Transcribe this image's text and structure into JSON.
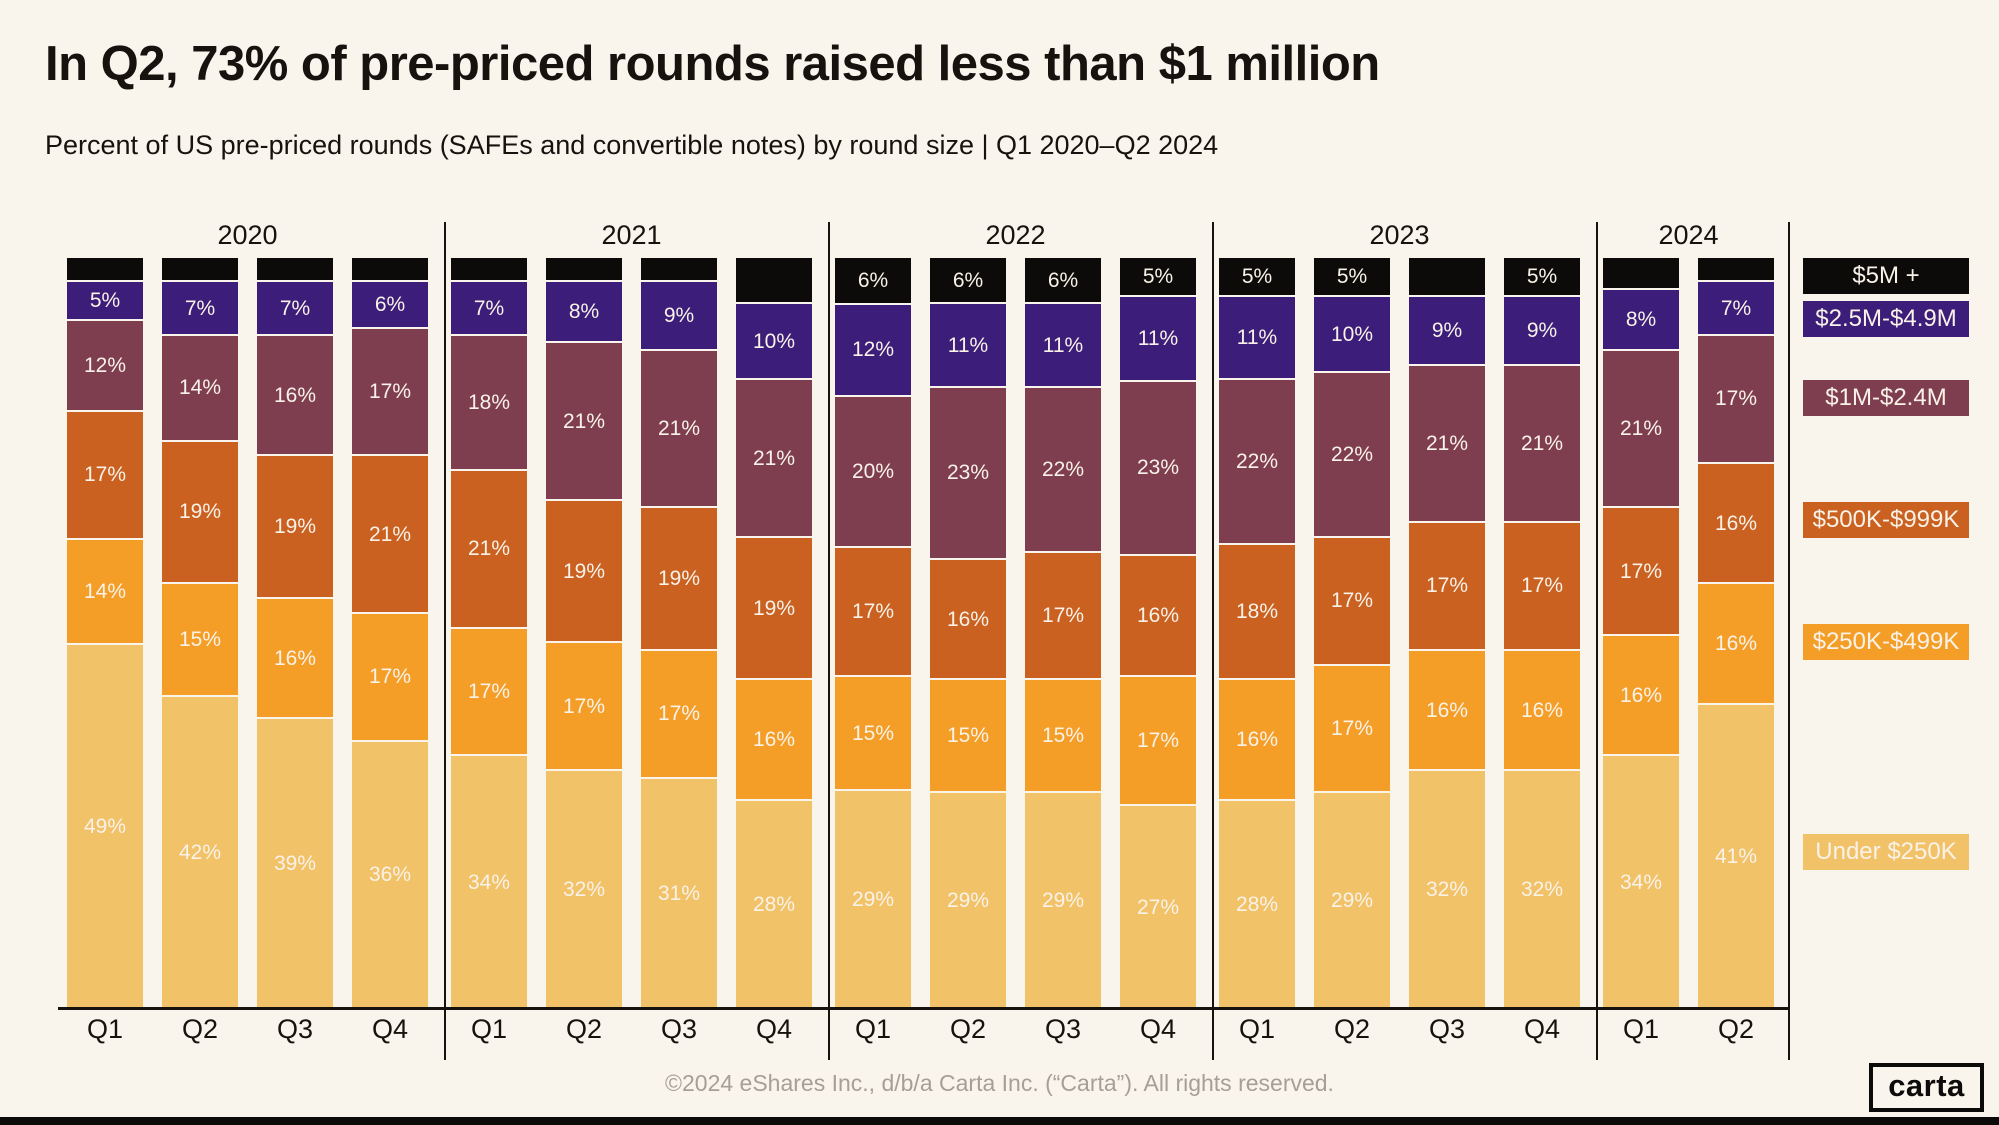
{
  "header": {
    "title": "In Q2, 73% of pre-priced rounds raised less than $1 million",
    "subtitle": "Percent of US pre-priced rounds (SAFEs and convertible notes) by round size | Q1 2020–Q2 2024"
  },
  "footer": {
    "copyright": "©2024 eShares Inc., d/b/a Carta Inc. (“Carta”). All rights reserved.",
    "logo_text": "carta"
  },
  "colors": {
    "background": "#f9f4ec",
    "m5_plus": "#0d0b0a",
    "m2_5_4_9": "#3c1d79",
    "m1_2_4": "#7f3e4f",
    "k500_999": "#ca6120",
    "k250_499": "#f59e27",
    "under_250k": "#f2c269",
    "bar_label": "#f8f2e8",
    "footer_text": "#a69f95",
    "text": "#16130f"
  },
  "legend": [
    {
      "key": "m5_plus",
      "label": "$5M +"
    },
    {
      "key": "m2_5_4_9",
      "label": "$2.5M-$4.9M"
    },
    {
      "key": "m1_2_4",
      "label": "$1M-$2.4M"
    },
    {
      "key": "k500_999",
      "label": "$500K-$999K"
    },
    {
      "key": "k250_499",
      "label": "$250K-$499K"
    },
    {
      "key": "under_250k",
      "label": "Under $250K"
    }
  ],
  "chart_data": {
    "type": "bar",
    "stacked": true,
    "value_unit": "%",
    "title": "In Q2, 73% of pre-priced rounds raised less than $1 million",
    "subtitle": "Percent of US pre-priced rounds (SAFEs and convertible notes) by round size | Q1 2020–Q2 2024",
    "stack_order_bottom_to_top": [
      "under_250k",
      "k250_499",
      "k500_999",
      "m1_2_4",
      "m2_5_4_9",
      "m5_plus"
    ],
    "legend_position": "right",
    "ylim": [
      0,
      100
    ],
    "grid": false,
    "groups": [
      {
        "year": "2020",
        "quarters": [
          {
            "label": "Q1",
            "values": {
              "under_250k": 49,
              "k250_499": 14,
              "k500_999": 17,
              "m1_2_4": 12,
              "m2_5_4_9": 5,
              "m5_plus": 3
            },
            "m5_label": false
          },
          {
            "label": "Q2",
            "values": {
              "under_250k": 42,
              "k250_499": 15,
              "k500_999": 19,
              "m1_2_4": 14,
              "m2_5_4_9": 7,
              "m5_plus": 3
            },
            "m5_label": false
          },
          {
            "label": "Q3",
            "values": {
              "under_250k": 39,
              "k250_499": 16,
              "k500_999": 19,
              "m1_2_4": 16,
              "m2_5_4_9": 7,
              "m5_plus": 3
            },
            "m5_label": false
          },
          {
            "label": "Q4",
            "values": {
              "under_250k": 36,
              "k250_499": 17,
              "k500_999": 21,
              "m1_2_4": 17,
              "m2_5_4_9": 6,
              "m5_plus": 3
            },
            "m5_label": false
          }
        ]
      },
      {
        "year": "2021",
        "quarters": [
          {
            "label": "Q1",
            "values": {
              "under_250k": 34,
              "k250_499": 17,
              "k500_999": 21,
              "m1_2_4": 18,
              "m2_5_4_9": 7,
              "m5_plus": 3
            },
            "m5_label": false
          },
          {
            "label": "Q2",
            "values": {
              "under_250k": 32,
              "k250_499": 17,
              "k500_999": 19,
              "m1_2_4": 21,
              "m2_5_4_9": 8,
              "m5_plus": 3
            },
            "m5_label": false
          },
          {
            "label": "Q3",
            "values": {
              "under_250k": 31,
              "k250_499": 17,
              "k500_999": 19,
              "m1_2_4": 21,
              "m2_5_4_9": 9,
              "m5_plus": 3
            },
            "m5_label": false
          },
          {
            "label": "Q4",
            "values": {
              "under_250k": 28,
              "k250_499": 16,
              "k500_999": 19,
              "m1_2_4": 21,
              "m2_5_4_9": 10,
              "m5_plus": 6
            },
            "m5_label": false
          }
        ]
      },
      {
        "year": "2022",
        "quarters": [
          {
            "label": "Q1",
            "values": {
              "under_250k": 29,
              "k250_499": 15,
              "k500_999": 17,
              "m1_2_4": 20,
              "m2_5_4_9": 12,
              "m5_plus": 6
            },
            "m5_label": true
          },
          {
            "label": "Q2",
            "values": {
              "under_250k": 29,
              "k250_499": 15,
              "k500_999": 16,
              "m1_2_4": 23,
              "m2_5_4_9": 11,
              "m5_plus": 6
            },
            "m5_label": true
          },
          {
            "label": "Q3",
            "values": {
              "under_250k": 29,
              "k250_499": 15,
              "k500_999": 17,
              "m1_2_4": 22,
              "m2_5_4_9": 11,
              "m5_plus": 6
            },
            "m5_label": true
          },
          {
            "label": "Q4",
            "values": {
              "under_250k": 27,
              "k250_499": 17,
              "k500_999": 16,
              "m1_2_4": 23,
              "m2_5_4_9": 11,
              "m5_plus": 5
            },
            "m5_label": true
          }
        ]
      },
      {
        "year": "2023",
        "quarters": [
          {
            "label": "Q1",
            "values": {
              "under_250k": 28,
              "k250_499": 16,
              "k500_999": 18,
              "m1_2_4": 22,
              "m2_5_4_9": 11,
              "m5_plus": 5
            },
            "m5_label": true
          },
          {
            "label": "Q2",
            "values": {
              "under_250k": 29,
              "k250_499": 17,
              "k500_999": 17,
              "m1_2_4": 22,
              "m2_5_4_9": 10,
              "m5_plus": 5
            },
            "m5_label": true
          },
          {
            "label": "Q3",
            "values": {
              "under_250k": 32,
              "k250_499": 16,
              "k500_999": 17,
              "m1_2_4": 21,
              "m2_5_4_9": 9,
              "m5_plus": 5
            },
            "m5_label": false
          },
          {
            "label": "Q4",
            "values": {
              "under_250k": 32,
              "k250_499": 16,
              "k500_999": 17,
              "m1_2_4": 21,
              "m2_5_4_9": 9,
              "m5_plus": 5
            },
            "m5_label": true
          }
        ]
      },
      {
        "year": "2024",
        "quarters": [
          {
            "label": "Q1",
            "values": {
              "under_250k": 34,
              "k250_499": 16,
              "k500_999": 17,
              "m1_2_4": 21,
              "m2_5_4_9": 8,
              "m5_plus": 4
            },
            "m5_label": false
          },
          {
            "label": "Q2",
            "values": {
              "under_250k": 41,
              "k250_499": 16,
              "k500_999": 16,
              "m1_2_4": 17,
              "m2_5_4_9": 7,
              "m5_plus": 3
            },
            "m5_label": false
          }
        ]
      }
    ]
  }
}
